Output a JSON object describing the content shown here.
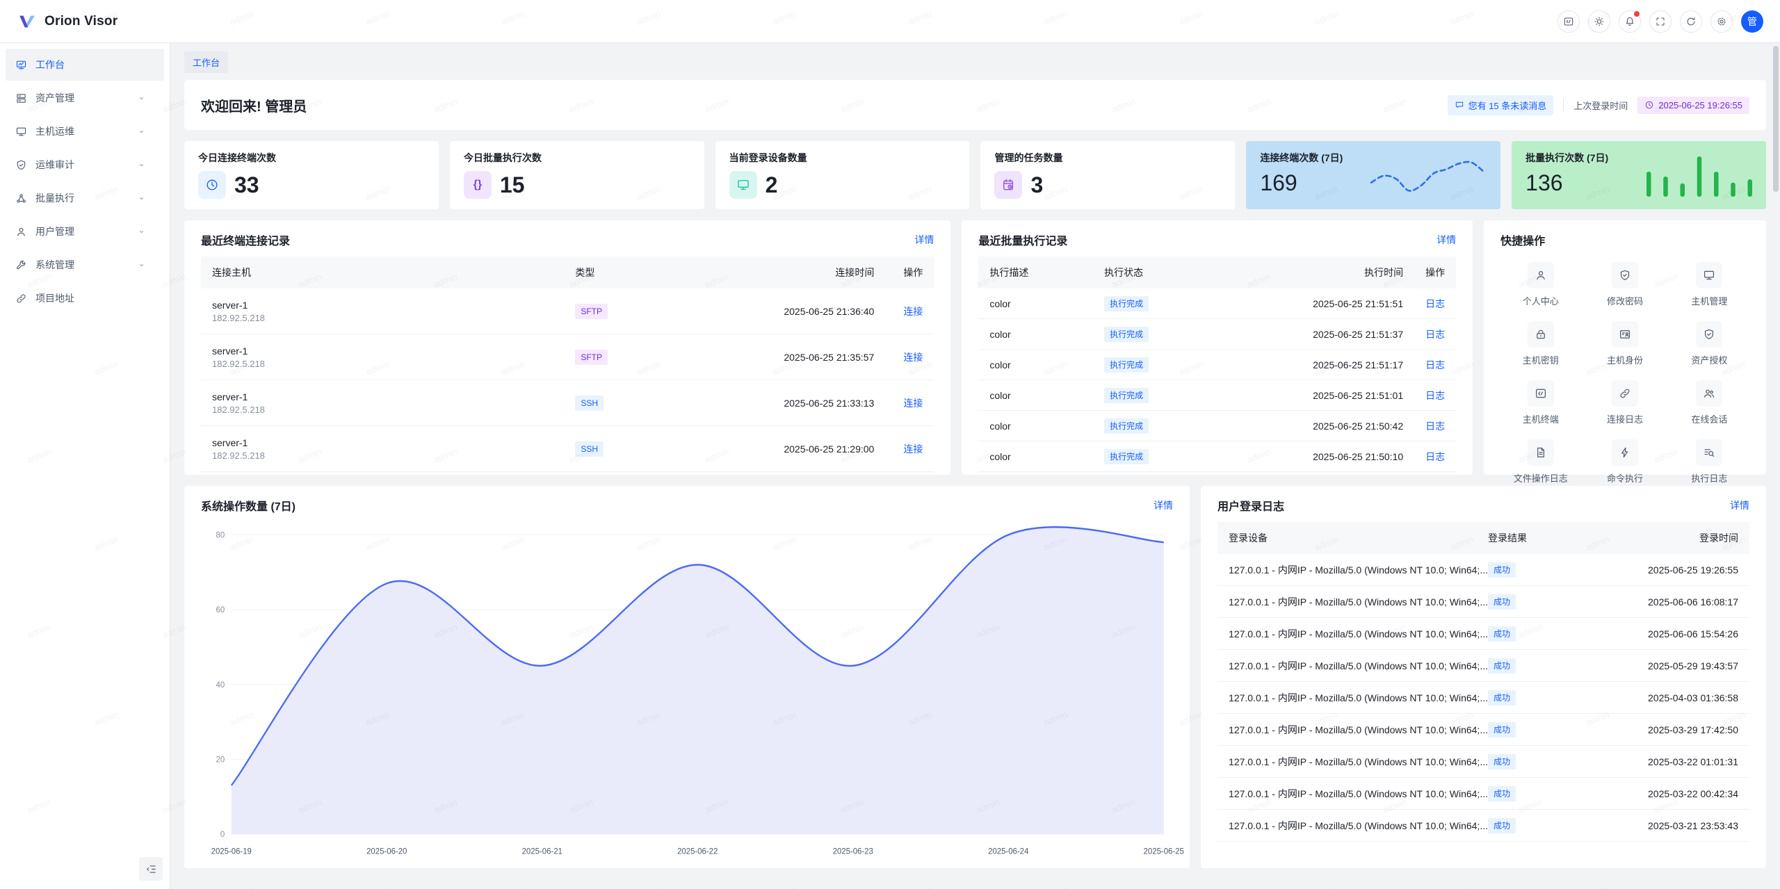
{
  "app": {
    "title": "Orion Visor",
    "avatar_text": "管"
  },
  "header": {
    "buttons": [
      {
        "key": "code",
        "icon": "code-icon"
      },
      {
        "key": "theme",
        "icon": "theme-icon"
      },
      {
        "key": "notifications",
        "icon": "bell-icon",
        "dot": true
      },
      {
        "key": "fullscreen",
        "icon": "fullscreen-icon"
      },
      {
        "key": "refresh",
        "icon": "refresh-icon"
      },
      {
        "key": "settings",
        "icon": "settings-icon"
      }
    ]
  },
  "sidebar": {
    "items": [
      {
        "key": "workbench",
        "label": "工作台",
        "icon": "workbench-icon",
        "active": true,
        "chevron": false
      },
      {
        "key": "asset-management",
        "label": "资产管理",
        "icon": "asset-icon",
        "active": false,
        "chevron": true
      },
      {
        "key": "host-ops",
        "label": "主机运维",
        "icon": "host-icon",
        "active": false,
        "chevron": true
      },
      {
        "key": "ops-audit",
        "label": "运维审计",
        "icon": "audit-icon",
        "active": false,
        "chevron": true
      },
      {
        "key": "batch-exec",
        "label": "批量执行",
        "icon": "batch-icon",
        "active": false,
        "chevron": true
      },
      {
        "key": "user-management",
        "label": "用户管理",
        "icon": "user-icon",
        "active": false,
        "chevron": true
      },
      {
        "key": "system-management",
        "label": "系统管理",
        "icon": "system-icon",
        "active": false,
        "chevron": true
      },
      {
        "key": "project-site",
        "label": "项目地址",
        "icon": "link-icon",
        "active": false,
        "chevron": false
      }
    ]
  },
  "breadcrumb": {
    "label": "工作台"
  },
  "welcome": {
    "title": "欢迎回来! 管理员",
    "unread_badge": "您有 15 条未读消息",
    "last_login_label": "上次登录时间",
    "last_login_time": "2025-06-25 19:26:55"
  },
  "stat_cards": [
    {
      "key": "today-terminal-connections",
      "title": "今日连接终端次数",
      "value": "33",
      "icon": "clock-icon",
      "icon_color": "#165dff",
      "icon_bg": "#e8f3ff"
    },
    {
      "key": "today-batch-executions",
      "title": "今日批量执行次数",
      "value": "15",
      "icon": "braces-icon",
      "icon_color": "#7b42e0",
      "icon_bg": "#f1e5fd"
    },
    {
      "key": "current-login-devices",
      "title": "当前登录设备数量",
      "value": "2",
      "icon": "monitor-icon",
      "icon_color": "#10c2a2",
      "icon_bg": "#d8f6ef"
    },
    {
      "key": "managed-tasks",
      "title": "管理的任务数量",
      "value": "3",
      "icon": "task-icon",
      "icon_color": "#8d4eda",
      "icon_bg": "#f0e3fc"
    }
  ],
  "spark_cards": [
    {
      "key": "terminal-connections-7d",
      "title": "连接终端次数 (7日)",
      "value": "169",
      "bg": "#bddef6",
      "chart": "connect-sparkline"
    },
    {
      "key": "batch-executions-7d",
      "title": "批量执行次数 (7日)",
      "value": "136",
      "bg": "#b9eec9",
      "chart": "exec-sparkline"
    }
  ],
  "connect_panel": {
    "title": "最近终端连接记录",
    "more": "详情",
    "columns": [
      "连接主机",
      "类型",
      "连接时间",
      "操作"
    ],
    "rows": [
      {
        "host": "server-1",
        "ip": "182.92.5.218",
        "type": "SFTP",
        "type_color": "purple",
        "time": "2025-06-25 21:36:40",
        "action": "连接"
      },
      {
        "host": "server-1",
        "ip": "182.92.5.218",
        "type": "SFTP",
        "type_color": "purple",
        "time": "2025-06-25 21:35:57",
        "action": "连接"
      },
      {
        "host": "server-1",
        "ip": "182.92.5.218",
        "type": "SSH",
        "type_color": "blue",
        "time": "2025-06-25 21:33:13",
        "action": "连接"
      },
      {
        "host": "server-1",
        "ip": "182.92.5.218",
        "type": "SSH",
        "type_color": "blue",
        "time": "2025-06-25 21:29:00",
        "action": "连接"
      }
    ]
  },
  "exec_panel": {
    "title": "最近批量执行记录",
    "more": "详情",
    "columns": [
      "执行描述",
      "执行状态",
      "执行时间",
      "操作"
    ],
    "rows": [
      {
        "desc": "color",
        "status": "执行完成",
        "time": "2025-06-25 21:51:51",
        "action": "日志"
      },
      {
        "desc": "color",
        "status": "执行完成",
        "time": "2025-06-25 21:51:37",
        "action": "日志"
      },
      {
        "desc": "color",
        "status": "执行完成",
        "time": "2025-06-25 21:51:17",
        "action": "日志"
      },
      {
        "desc": "color",
        "status": "执行完成",
        "time": "2025-06-25 21:51:01",
        "action": "日志"
      },
      {
        "desc": "color",
        "status": "执行完成",
        "time": "2025-06-25 21:50:42",
        "action": "日志"
      },
      {
        "desc": "color",
        "status": "执行完成",
        "time": "2025-06-25 21:50:10",
        "action": "日志"
      }
    ]
  },
  "quick_panel": {
    "title": "快捷操作",
    "items": [
      {
        "key": "profile",
        "label": "个人中心",
        "icon": "person-icon"
      },
      {
        "key": "change-password",
        "label": "修改密码",
        "icon": "shield-check-icon"
      },
      {
        "key": "host-management",
        "label": "主机管理",
        "icon": "monitor-icon"
      },
      {
        "key": "host-key",
        "label": "主机密钥",
        "icon": "lock-icon"
      },
      {
        "key": "host-identity",
        "label": "主机身份",
        "icon": "id-card-icon"
      },
      {
        "key": "asset-grant",
        "label": "资产授权",
        "icon": "shield-check-icon"
      },
      {
        "key": "host-terminal",
        "label": "主机终端",
        "icon": "terminal-icon"
      },
      {
        "key": "connect-log",
        "label": "连接日志",
        "icon": "link-icon"
      },
      {
        "key": "online-session",
        "label": "在线会话",
        "icon": "users-icon"
      },
      {
        "key": "file-op-log",
        "label": "文件操作日志",
        "icon": "file-icon"
      },
      {
        "key": "command-exec",
        "label": "命令执行",
        "icon": "lightning-icon"
      },
      {
        "key": "exec-log",
        "label": "执行日志",
        "icon": "search-list-icon"
      }
    ]
  },
  "chart_panel": {
    "title": "系统操作数量 (7日)",
    "more": "详情"
  },
  "login_panel": {
    "title": "用户登录日志",
    "more": "详情",
    "columns": [
      "登录设备",
      "登录结果",
      "登录时间"
    ],
    "rows": [
      {
        "device": "127.0.0.1 - 内网IP - Mozilla/5.0 (Windows NT 10.0; Win64;...",
        "result": "成功",
        "time": "2025-06-25 19:26:55"
      },
      {
        "device": "127.0.0.1 - 内网IP - Mozilla/5.0 (Windows NT 10.0; Win64;...",
        "result": "成功",
        "time": "2025-06-06 16:08:17"
      },
      {
        "device": "127.0.0.1 - 内网IP - Mozilla/5.0 (Windows NT 10.0; Win64;...",
        "result": "成功",
        "time": "2025-06-06 15:54:26"
      },
      {
        "device": "127.0.0.1 - 内网IP - Mozilla/5.0 (Windows NT 10.0; Win64;...",
        "result": "成功",
        "time": "2025-05-29 19:43:57"
      },
      {
        "device": "127.0.0.1 - 内网IP - Mozilla/5.0 (Windows NT 10.0; Win64;...",
        "result": "成功",
        "time": "2025-04-03 01:36:58"
      },
      {
        "device": "127.0.0.1 - 内网IP - Mozilla/5.0 (Windows NT 10.0; Win64;...",
        "result": "成功",
        "time": "2025-03-29 17:42:50"
      },
      {
        "device": "127.0.0.1 - 内网IP - Mozilla/5.0 (Windows NT 10.0; Win64;...",
        "result": "成功",
        "time": "2025-03-22 01:01:31"
      },
      {
        "device": "127.0.0.1 - 内网IP - Mozilla/5.0 (Windows NT 10.0; Win64;...",
        "result": "成功",
        "time": "2025-03-22 00:42:34"
      },
      {
        "device": "127.0.0.1 - 内网IP - Mozilla/5.0 (Windows NT 10.0; Win64;...",
        "result": "成功",
        "time": "2025-03-21 23:53:43"
      }
    ]
  },
  "chart_data": [
    {
      "id": "connect-sparkline",
      "type": "line",
      "title": "连接终端次数 (7日)",
      "values": [
        35,
        52,
        44,
        15,
        28,
        58,
        68,
        82,
        85,
        62
      ],
      "line_color": "#2e6fe4",
      "style": "dashed",
      "total": 169
    },
    {
      "id": "exec-sparkline",
      "type": "bar",
      "title": "批量执行次数 (7日)",
      "values": [
        62,
        50,
        33,
        100,
        62,
        35,
        43
      ],
      "bar_color": "#25b34b",
      "total": 136
    },
    {
      "id": "system-operations",
      "type": "area",
      "title": "系统操作数量 (7日)",
      "x": [
        "2025-06-19",
        "2025-06-20",
        "2025-06-21",
        "2025-06-22",
        "2025-06-23",
        "2025-06-24",
        "2025-06-25"
      ],
      "values": [
        13,
        67,
        45,
        72,
        45,
        80,
        78
      ],
      "ylim": [
        0,
        80
      ],
      "yticks": [
        0,
        20,
        40,
        60,
        80
      ],
      "grid": true,
      "legend": "none",
      "line_color": "#4d6bf0",
      "fill_color": "#e9ebfa"
    }
  ],
  "watermark": {
    "text": "admin"
  },
  "colors": {
    "accent": "#165dff",
    "tag_blue_bg": "#e8f3ff",
    "tag_purple_text": "#722ed1",
    "tag_purple_bg": "#f5e8ff",
    "page_bg": "#f2f3f5"
  }
}
